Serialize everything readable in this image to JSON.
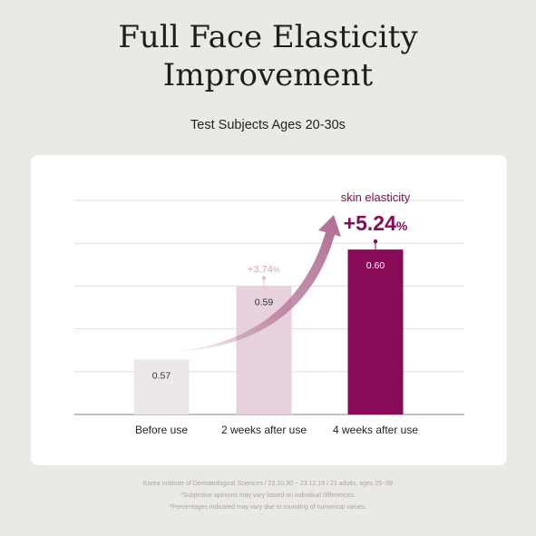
{
  "title_lines": [
    "Full Face Elasticity",
    "Improvement"
  ],
  "subtitle": "Test Subjects Ages 20-30s",
  "chart_data": {
    "type": "bar",
    "title": "Full Face Elasticity Improvement",
    "subtitle": "Test Subjects Ages 20-30s",
    "categories": [
      "Before use",
      "2 weeks after use",
      "4 weeks after use"
    ],
    "values": [
      0.57,
      0.59,
      0.6
    ],
    "value_labels": [
      "0.57",
      "0.59",
      "0.60"
    ],
    "bar_colors": [
      "#ece7ea",
      "#e6d1dc",
      "#870b56"
    ],
    "value_label_colors": [
      "#333333",
      "#333333",
      "#ffffff"
    ],
    "increase_labels": [
      {
        "category_index": 1,
        "prefix": "+",
        "number": "3.74",
        "suffix": "%",
        "color": "#dcbfcd"
      },
      {
        "category_index": 2,
        "prefix": "+",
        "number": "5.24",
        "suffix": "%",
        "color": "#870b56"
      }
    ],
    "highlight_label": "skin elasticity",
    "arrow_color": "#b06e92",
    "gridlines": 5,
    "grid": true,
    "legend": "none"
  },
  "notes": [
    "Korea Institute of Dermatological Sciences / 23.10.30 ~ 23.12.19 / 21 adults, ages 25~39",
    "*Subjective opinions may vary based on individual differences.",
    "*Percentages indicated may vary due to rounding of numerical values."
  ]
}
